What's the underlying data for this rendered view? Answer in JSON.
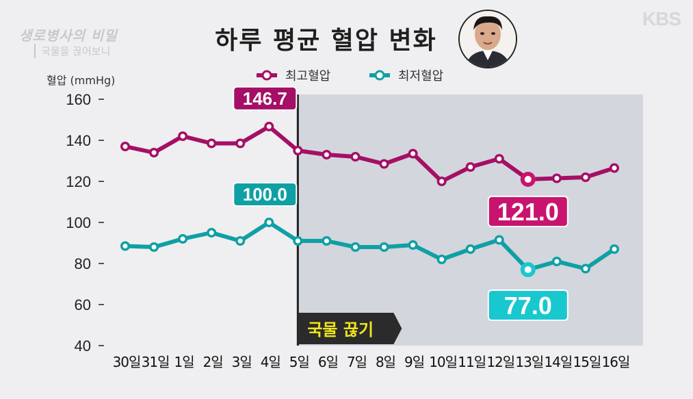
{
  "page": {
    "title": "하루 평균 혈압 변화",
    "logo_title": "생로병사의 비밀",
    "logo_sub": "국물을 끊어보니",
    "broadcaster": "KBS"
  },
  "chart_data": {
    "type": "line",
    "title": "하루 평균 혈압 변화",
    "ylabel": "혈압 (mmHg)",
    "ylim": [
      40,
      160
    ],
    "yticks": [
      40,
      60,
      80,
      100,
      120,
      140,
      160
    ],
    "categories": [
      "30일",
      "31일",
      "1일",
      "2일",
      "3일",
      "4일",
      "5일",
      "6일",
      "7일",
      "8일",
      "9일",
      "10일",
      "11일",
      "12일",
      "13일",
      "14일",
      "15일",
      "16일"
    ],
    "series": [
      {
        "name": "최고혈압",
        "color": "#a50f66",
        "values": [
          137,
          134,
          142,
          138.5,
          138.5,
          146.7,
          135,
          133,
          132,
          128.5,
          133.5,
          120,
          127,
          131,
          121.0,
          121.5,
          122,
          126.5
        ]
      },
      {
        "name": "최저혈압",
        "color": "#0fa0a5",
        "values": [
          88.5,
          88,
          92,
          95,
          91,
          100.0,
          91,
          91,
          88,
          88,
          89,
          82,
          87,
          91.5,
          77.0,
          81,
          77.5,
          87
        ]
      }
    ],
    "callouts": [
      {
        "label": "146.7",
        "series": 0,
        "index": 5,
        "color": "#a50f66"
      },
      {
        "label": "100.0",
        "series": 1,
        "index": 5,
        "color": "#0fa0a5"
      },
      {
        "label": "121.0",
        "series": 0,
        "index": 14,
        "color": "#c8146f"
      },
      {
        "label": "77.0",
        "series": 1,
        "index": 14,
        "color": "#19c7cf"
      }
    ],
    "marker": {
      "index": 6,
      "label": "국물 끊기",
      "label_color": "#f2e51b"
    },
    "grid": false,
    "legend": "top-center"
  }
}
